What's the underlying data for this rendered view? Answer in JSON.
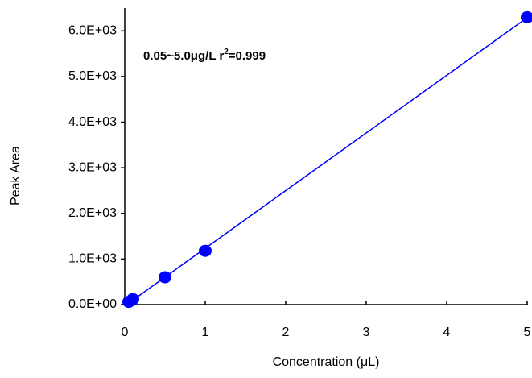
{
  "chart_data": {
    "type": "scatter",
    "x_label": "Concentration (μL)",
    "y_label": "Peak Area",
    "annotation": {
      "text": "0.05~5.0μg/L  r",
      "sup": "2",
      "rest": "=0.999"
    },
    "series": [
      {
        "color": "#0000ff",
        "x": [
          0.05,
          0.1,
          0.5,
          1,
          5
        ],
        "values": [
          60,
          120,
          600,
          1180,
          6300
        ]
      }
    ],
    "fit_line": true,
    "xlim": [
      0,
      5
    ],
    "xticks": [
      0,
      1,
      2,
      3,
      4,
      5
    ],
    "ylim": [
      0,
      6500
    ],
    "yticks": [
      {
        "value": 0,
        "label": "0.0E+00"
      },
      {
        "value": 1000,
        "label": "1.0E+03"
      },
      {
        "value": 2000,
        "label": "2.0E+03"
      },
      {
        "value": 3000,
        "label": "3.0E+03"
      },
      {
        "value": 4000,
        "label": "4.0E+03"
      },
      {
        "value": 5000,
        "label": "5.0E+03"
      },
      {
        "value": 6000,
        "label": "6.0E+03"
      }
    ],
    "grid": false
  }
}
